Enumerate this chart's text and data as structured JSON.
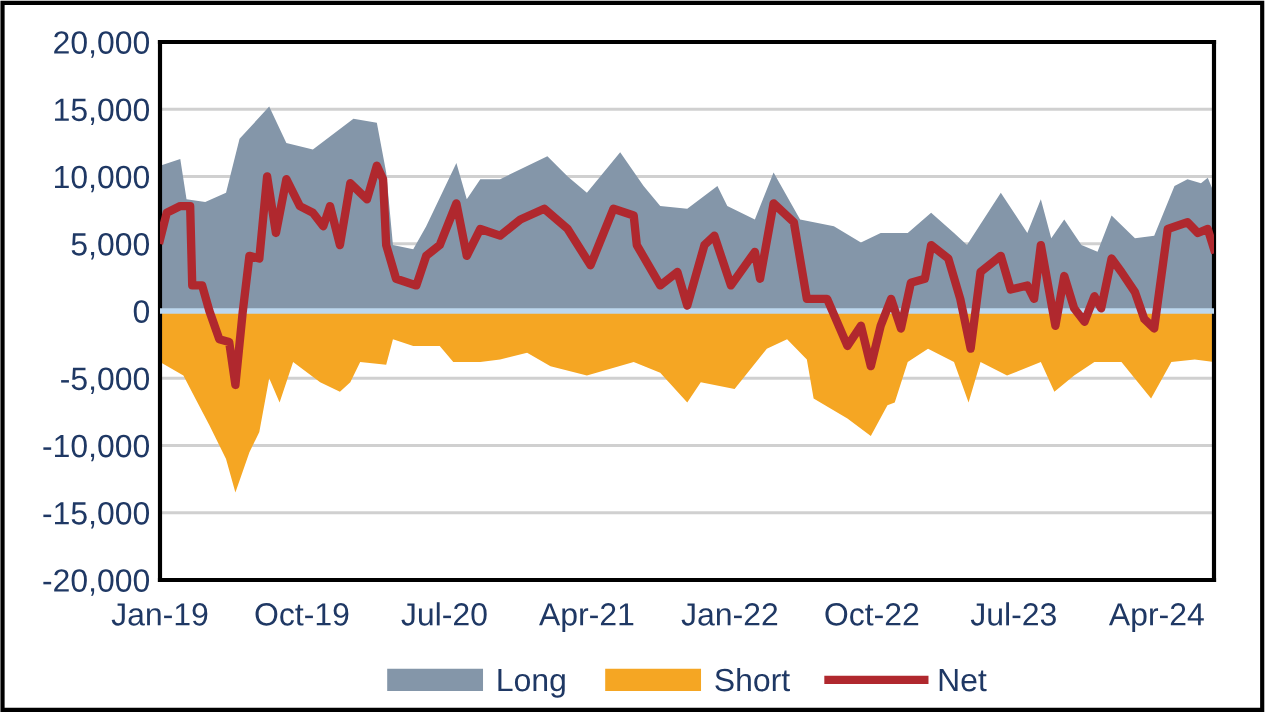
{
  "chart_data": {
    "type": "area",
    "xlim": [
      "2019-01-01",
      "2024-07-20"
    ],
    "xticks": [
      {
        "value": "2019-01-01",
        "label": "Jan-19"
      },
      {
        "value": "2019-10-01",
        "label": "Oct-19"
      },
      {
        "value": "2020-07-01",
        "label": "Jul-20"
      },
      {
        "value": "2021-04-01",
        "label": "Apr-21"
      },
      {
        "value": "2022-01-01",
        "label": "Jan-22"
      },
      {
        "value": "2022-10-01",
        "label": "Oct-22"
      },
      {
        "value": "2023-07-01",
        "label": "Jul-23"
      },
      {
        "value": "2024-04-01",
        "label": "Apr-24"
      }
    ],
    "ylim": [
      -20000,
      20000
    ],
    "yticks": [
      {
        "value": -20000,
        "label": "-20,000"
      },
      {
        "value": -15000,
        "label": "-15,000"
      },
      {
        "value": -10000,
        "label": "-10,000"
      },
      {
        "value": -5000,
        "label": "-5,000"
      },
      0,
      {
        "value": 5000,
        "label": "5,000"
      },
      {
        "value": 10000,
        "label": "10,000"
      },
      {
        "value": 15000,
        "label": "15,000"
      },
      {
        "value": 20000,
        "label": "20,000"
      }
    ],
    "grid": "y",
    "legend": "bottom",
    "ref_lines": [
      {
        "axis": "y",
        "value": 0,
        "color": "#bdd7ee"
      }
    ],
    "series": [
      {
        "name": "Long",
        "color": "#8496a9",
        "x": [
          "2019-01-01",
          "2019-02-09",
          "2019-02-21",
          "2019-03-29",
          "2019-05-08",
          "2019-06-03",
          "2019-07-30",
          "2019-09-01",
          "2019-10-22",
          "2020-01-08",
          "2020-02-22",
          "2020-03-11",
          "2020-03-24",
          "2020-05-02",
          "2020-05-27",
          "2020-07-24",
          "2020-08-13",
          "2020-09-08",
          "2020-10-16",
          "2021-01-15",
          "2021-02-23",
          "2021-04-01",
          "2021-06-04",
          "2021-07-19",
          "2021-08-20",
          "2021-10-11",
          "2021-12-08",
          "2021-12-27",
          "2022-02-18",
          "2022-03-26",
          "2022-05-16",
          "2022-07-20",
          "2022-09-10",
          "2022-10-18",
          "2022-12-09",
          "2023-01-23",
          "2023-03-08",
          "2023-04-02",
          "2023-06-06",
          "2023-07-27",
          "2023-08-22",
          "2023-09-11",
          "2023-10-06",
          "2023-11-08",
          "2023-12-09",
          "2024-01-05",
          "2024-02-19",
          "2024-03-27",
          "2024-05-05",
          "2024-05-30",
          "2024-06-25",
          "2024-07-08",
          "2024-07-20"
        ],
        "values": [
          10800,
          11300,
          8300,
          8100,
          8800,
          12800,
          15200,
          12500,
          12000,
          14300,
          14000,
          10300,
          4900,
          4600,
          6300,
          11000,
          8300,
          9800,
          9800,
          11500,
          10000,
          8800,
          11800,
          9300,
          7800,
          7600,
          9300,
          7800,
          6800,
          10300,
          6800,
          6300,
          5100,
          5800,
          5800,
          7300,
          5800,
          4900,
          8800,
          5800,
          8300,
          5400,
          6800,
          4900,
          4400,
          7100,
          5400,
          5600,
          9300,
          9800,
          9500,
          9900,
          8800
        ]
      },
      {
        "name": "Short",
        "color": "#f5a623",
        "x": [
          "2019-01-01",
          "2019-02-15",
          "2019-03-10",
          "2019-04-06",
          "2019-05-08",
          "2019-05-26",
          "2019-06-22",
          "2019-07-11",
          "2019-07-30",
          "2019-08-19",
          "2019-09-14",
          "2019-11-05",
          "2019-12-13",
          "2020-01-02",
          "2020-01-21",
          "2020-03-11",
          "2020-03-24",
          "2020-05-02",
          "2020-06-22",
          "2020-07-18",
          "2020-09-08",
          "2020-10-16",
          "2020-12-07",
          "2021-01-21",
          "2021-04-01",
          "2021-06-30",
          "2021-08-20",
          "2021-10-11",
          "2021-11-06",
          "2022-01-10",
          "2022-03-13",
          "2022-04-21",
          "2022-05-29",
          "2022-06-11",
          "2022-08-15",
          "2022-09-29",
          "2022-10-31",
          "2022-11-14",
          "2022-12-09",
          "2023-01-17",
          "2023-03-08",
          "2023-04-05",
          "2023-04-28",
          "2023-06-18",
          "2023-08-22",
          "2023-09-17",
          "2023-10-25",
          "2023-12-03",
          "2024-01-24",
          "2024-03-21",
          "2024-04-29",
          "2024-06-13",
          "2024-07-20"
        ],
        "values": [
          -3800,
          -4800,
          -6500,
          -8500,
          -11000,
          -13500,
          -10500,
          -9000,
          -5000,
          -6800,
          -3800,
          -5300,
          -6000,
          -5300,
          -3800,
          -4000,
          -2100,
          -2600,
          -2600,
          -3800,
          -3800,
          -3600,
          -3100,
          -4100,
          -4800,
          -3800,
          -4600,
          -6800,
          -5300,
          -5800,
          -2800,
          -2100,
          -3600,
          -6500,
          -8000,
          -9300,
          -7000,
          -6800,
          -3800,
          -2800,
          -3800,
          -6800,
          -3800,
          -4800,
          -3800,
          -6000,
          -4800,
          -3800,
          -3800,
          -6500,
          -3800,
          -3600,
          -3800
        ]
      },
      {
        "name": "Net",
        "type": "line",
        "color": "#b0282e",
        "x": [
          "2019-01-01",
          "2019-01-14",
          "2019-02-09",
          "2019-02-28",
          "2019-03-04",
          "2019-03-23",
          "2019-04-06",
          "2019-04-25",
          "2019-05-14",
          "2019-05-26",
          "2019-06-09",
          "2019-06-22",
          "2019-07-11",
          "2019-07-26",
          "2019-08-12",
          "2019-09-01",
          "2019-09-27",
          "2019-10-22",
          "2019-11-11",
          "2019-11-24",
          "2019-12-13",
          "2020-01-02",
          "2020-02-03",
          "2020-02-22",
          "2020-03-05",
          "2020-03-11",
          "2020-03-30",
          "2020-05-08",
          "2020-05-27",
          "2020-06-22",
          "2020-07-24",
          "2020-08-13",
          "2020-09-08",
          "2020-10-16",
          "2020-11-24",
          "2021-01-09",
          "2021-02-23",
          "2021-04-08",
          "2021-05-22",
          "2021-06-30",
          "2021-07-06",
          "2021-08-20",
          "2021-09-22",
          "2021-10-11",
          "2021-11-13",
          "2021-12-02",
          "2022-01-03",
          "2022-02-18",
          "2022-02-28",
          "2022-03-26",
          "2022-05-04",
          "2022-05-29",
          "2022-07-07",
          "2022-08-15",
          "2022-09-10",
          "2022-09-29",
          "2022-10-18",
          "2022-11-07",
          "2022-11-26",
          "2022-12-15",
          "2023-01-11",
          "2023-01-23",
          "2023-02-25",
          "2023-03-20",
          "2023-04-09",
          "2023-04-28",
          "2023-06-06",
          "2023-06-25",
          "2023-07-27",
          "2023-08-09",
          "2023-08-22",
          "2023-09-19",
          "2023-10-06",
          "2023-10-25",
          "2023-11-14",
          "2023-12-03",
          "2023-12-16",
          "2024-01-05",
          "2024-01-24",
          "2024-02-19",
          "2024-03-08",
          "2024-03-27",
          "2024-04-22",
          "2024-05-30",
          "2024-06-19",
          "2024-07-08",
          "2024-07-20"
        ],
        "values": [
          5300,
          7300,
          7800,
          7800,
          1900,
          1900,
          0,
          -2100,
          -2300,
          -5500,
          -100,
          4100,
          3900,
          10000,
          5800,
          9800,
          7800,
          7300,
          6300,
          7800,
          4900,
          9500,
          8300,
          10800,
          9800,
          4900,
          2400,
          1900,
          4100,
          4900,
          8000,
          4100,
          6100,
          5600,
          6800,
          7600,
          6100,
          3400,
          7600,
          7100,
          4900,
          1900,
          2900,
          400,
          4900,
          5600,
          1900,
          4400,
          2400,
          8000,
          6600,
          900,
          900,
          -2600,
          -1100,
          -4100,
          -1100,
          900,
          -1300,
          2100,
          2400,
          4900,
          3900,
          900,
          -2800,
          2900,
          4100,
          1600,
          1900,
          900,
          4900,
          -1100,
          2600,
          200,
          -800,
          1100,
          200,
          3900,
          2900,
          1400,
          -600,
          -1300,
          6100,
          6600,
          5800,
          6100,
          4600
        ]
      }
    ]
  }
}
